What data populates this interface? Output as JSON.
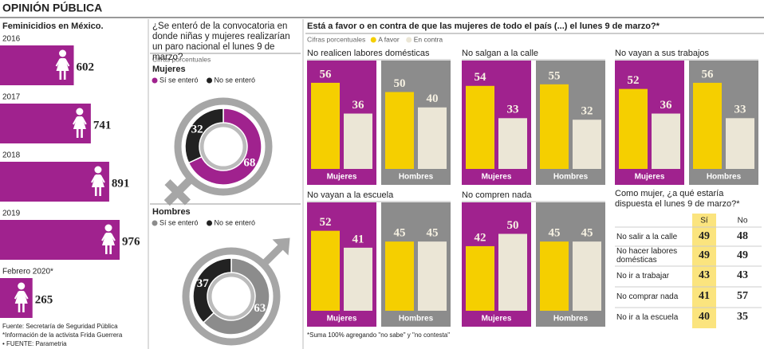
{
  "header": {
    "title": "OPINIÓN PÚBLICA"
  },
  "chart_data": [
    {
      "type": "bar",
      "orientation": "horizontal",
      "title": "Feminicidios en México.",
      "categories": [
        "2016",
        "2017",
        "2018",
        "2019",
        "Febrero 2020*"
      ],
      "values": [
        602,
        741,
        891,
        976,
        265
      ],
      "color": "#a0228e",
      "notes": [
        "Fuente: Secretaría de Seguridad Pública",
        "*Información de la activista Frida Guerrera",
        "• FUENTE: Parametria"
      ]
    },
    {
      "type": "donut",
      "title": "¿Se enteró de la convocatoria en donde niñas y mujeres realizarían un paro nacional el lunes 9 de marzo?",
      "subtitle": "Cifras porcentuales",
      "name": "Mujeres",
      "symbol": "female",
      "categories": [
        "Sí se enteró",
        "No se enteró"
      ],
      "values": [
        68,
        32
      ],
      "colors": [
        "#a0228e",
        "#222222"
      ]
    },
    {
      "type": "donut",
      "name": "Hombres",
      "symbol": "male",
      "categories": [
        "Sí se enteró",
        "No se enteró"
      ],
      "values": [
        63,
        37
      ],
      "colors": [
        "#8c8c8c",
        "#222222"
      ]
    },
    {
      "type": "bar",
      "title": "Está a favor o en contra de que las mujeres de todo el país (...) el lunes 9 de marzo?*",
      "subtitle": "Cifras porcentuales",
      "series": [
        {
          "name": "A favor",
          "color": "#f5cf00"
        },
        {
          "name": "En contra",
          "color": "#ebe6d6"
        }
      ],
      "categories": [
        "Mujeres",
        "Hombres"
      ],
      "category_colors": [
        "#a0228e",
        "#8c8c8c"
      ],
      "panels": [
        {
          "title": "No realicen labores domésticas",
          "values": [
            [
              56,
              36
            ],
            [
              50,
              40
            ]
          ]
        },
        {
          "title": "No salgan a la calle",
          "values": [
            [
              54,
              33
            ],
            [
              55,
              32
            ]
          ]
        },
        {
          "title": "No vayan a sus trabajos",
          "values": [
            [
              52,
              36
            ],
            [
              56,
              33
            ]
          ]
        },
        {
          "title": "No vayan a la escuela",
          "values": [
            [
              52,
              41
            ],
            [
              45,
              45
            ]
          ]
        },
        {
          "title": "No compren nada",
          "values": [
            [
              42,
              50
            ],
            [
              45,
              45
            ]
          ]
        }
      ],
      "note": "*Suma 100% agregando \"no sabe\" y \"no contesta\""
    },
    {
      "type": "table",
      "title": "Como mujer, ¿a qué estaría dispuesta el lunes 9 de marzo?*",
      "columns": [
        "Sí",
        "No"
      ],
      "highlight_color": "#fbe47e",
      "rows": [
        {
          "label": "No salir a la calle",
          "values": [
            49,
            48
          ]
        },
        {
          "label": "No hacer labores domésticas",
          "values": [
            49,
            49
          ]
        },
        {
          "label": "No ir a trabajar",
          "values": [
            43,
            43
          ]
        },
        {
          "label": "No comprar nada",
          "values": [
            41,
            57
          ]
        },
        {
          "label": "No ir a la escuela",
          "values": [
            40,
            35
          ]
        }
      ]
    }
  ]
}
